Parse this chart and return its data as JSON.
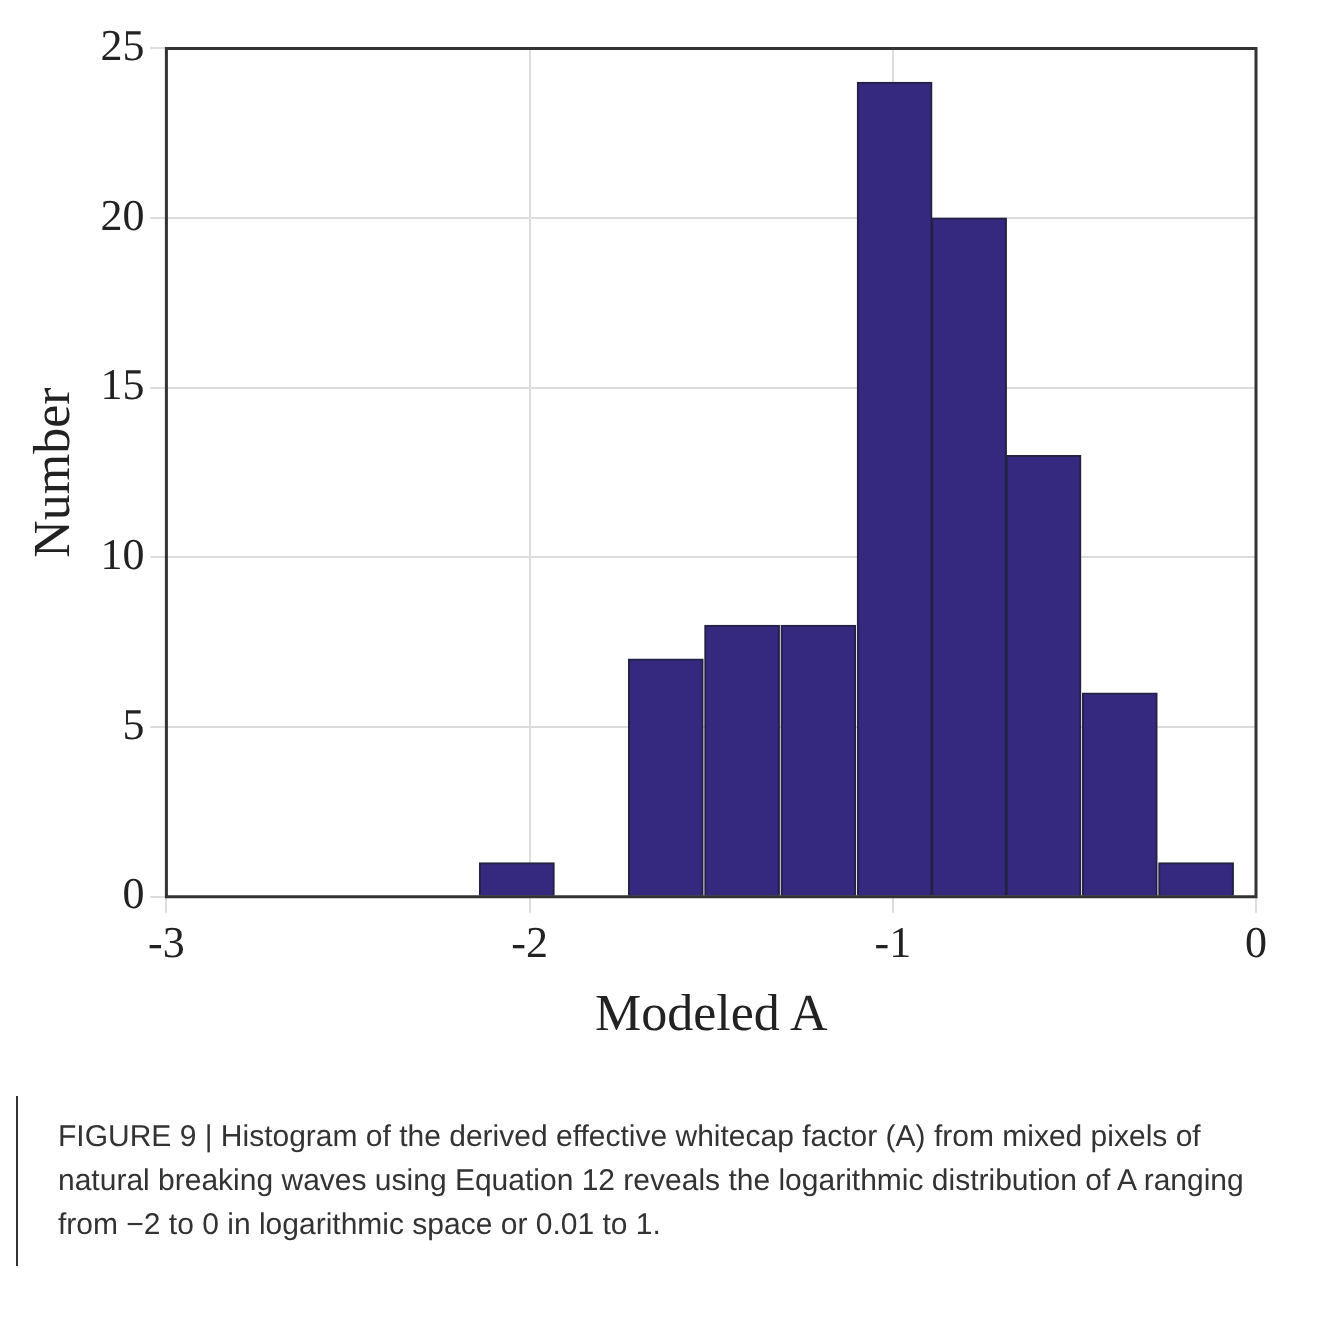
{
  "chart_data": {
    "type": "histogram",
    "xlabel": "Modeled A",
    "ylabel": "Number",
    "bins": [
      -2.14,
      -1.93,
      -1.73,
      -1.52,
      -1.31,
      -1.1,
      -0.89,
      -0.69,
      -0.48,
      -0.27,
      -0.06
    ],
    "values": [
      1,
      0,
      7,
      8,
      8,
      24,
      20,
      13,
      6,
      1
    ],
    "color": "#35287f",
    "xlim": [
      -3,
      0
    ],
    "xticks": [
      -3,
      -2,
      -1,
      0
    ],
    "ylim": [
      0,
      25
    ],
    "yticks": [
      0,
      5,
      10,
      15,
      20,
      25
    ],
    "grid": true,
    "annotations": [
      "FIGURE 9 | Histogram of the derived effective whitecap factor (A) from mixed pixels of natural breaking waves using Equation 12 reveals the logarithmic distribution of A ranging from −2 to 0 in logarithmic space or 0.01 to 1."
    ]
  }
}
